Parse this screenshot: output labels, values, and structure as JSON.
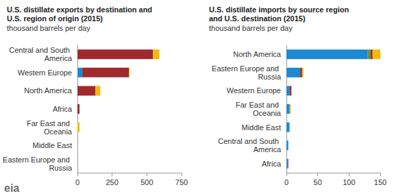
{
  "chart_data": [
    {
      "type": "bar",
      "orientation": "horizontal",
      "stacked": true,
      "grid": false,
      "title": "U.S. distillate exports by destination and U.S. region of origin (2015)",
      "subtitle": "thousand barrels per day",
      "categories": [
        "Central and South America",
        "Western Europe",
        "North America",
        "Africa",
        "Far East and Oceania",
        "Middle East",
        "Eastern Europe and Russia"
      ],
      "series": [
        {
          "color": "#1e88d2",
          "values": [
            0,
            35,
            0,
            0,
            0,
            0,
            0
          ]
        },
        {
          "color": "#5a9e2f",
          "values": [
            0,
            0,
            0,
            0,
            0,
            0,
            0
          ]
        },
        {
          "color": "#a0292d",
          "values": [
            545,
            335,
            130,
            15,
            0,
            0,
            0
          ]
        },
        {
          "color": "#b5651d",
          "values": [
            0,
            0,
            0,
            0,
            0,
            0,
            0
          ]
        },
        {
          "color": "#f2b90f",
          "values": [
            45,
            5,
            35,
            0,
            15,
            0,
            0
          ]
        }
      ],
      "xlim": [
        0,
        750
      ],
      "xticks": [
        0,
        250,
        500,
        750
      ]
    },
    {
      "type": "bar",
      "orientation": "horizontal",
      "stacked": true,
      "grid": false,
      "title": "U.S. distillate imports by source region and U.S. destination (2015)",
      "subtitle": "thousand barrels per day",
      "categories": [
        "North America",
        "Eastern Europe and Russia",
        "Western Europe",
        "Far East and Oceania",
        "Middle East",
        "Central and South America",
        "Africa"
      ],
      "series": [
        {
          "color": "#1e88d2",
          "values": [
            130,
            22,
            5,
            5,
            5,
            3,
            2
          ]
        },
        {
          "color": "#5a9e2f",
          "values": [
            4,
            0,
            0,
            1,
            0,
            0,
            0
          ]
        },
        {
          "color": "#a0292d",
          "values": [
            3,
            3,
            3,
            0,
            0,
            0,
            1
          ]
        },
        {
          "color": "#b5651d",
          "values": [
            1,
            0,
            0,
            0,
            0,
            0,
            0
          ]
        },
        {
          "color": "#f2b90f",
          "values": [
            12,
            2,
            0,
            1,
            0,
            0,
            0
          ]
        }
      ],
      "xlim": [
        0,
        150
      ],
      "xticks": [
        0,
        50,
        100,
        150
      ]
    }
  ],
  "logo": "eia"
}
